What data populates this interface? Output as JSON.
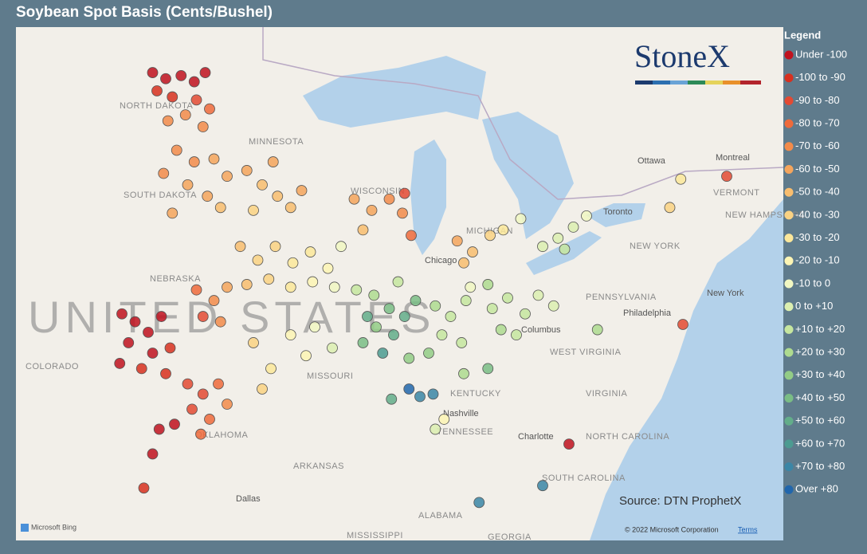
{
  "chart_data": {
    "type": "map-scatter",
    "title": "Soybean Spot Basis (Cents/Bushel)",
    "legend_title": "Legend",
    "legend": [
      {
        "label": "Under -100",
        "color": "#c0121e",
        "max": -100
      },
      {
        "label": "-100 to -90",
        "color": "#d7301f",
        "min": -100,
        "max": -90
      },
      {
        "label": "-90 to -80",
        "color": "#e34a33",
        "min": -90,
        "max": -80
      },
      {
        "label": "-80 to -70",
        "color": "#ee6a3b",
        "min": -80,
        "max": -70
      },
      {
        "label": "-70 to -60",
        "color": "#f28b4a",
        "min": -70,
        "max": -60
      },
      {
        "label": "-60 to -50",
        "color": "#f5a55c",
        "min": -60,
        "max": -50
      },
      {
        "label": "-50 to -40",
        "color": "#f8bd6e",
        "min": -50,
        "max": -40
      },
      {
        "label": "-40 to -30",
        "color": "#fad283",
        "min": -40,
        "max": -30
      },
      {
        "label": "-30 to -20",
        "color": "#fce79a",
        "min": -30,
        "max": -20
      },
      {
        "label": "-20 to -10",
        "color": "#fdf5b4",
        "min": -20,
        "max": -10
      },
      {
        "label": "-10 to 0",
        "color": "#f1f7c2",
        "min": -10,
        "max": 0
      },
      {
        "label": "0 to +10",
        "color": "#dcefb0",
        "min": 0,
        "max": 10
      },
      {
        "label": "+10 to +20",
        "color": "#c6e69f",
        "min": 10,
        "max": 20
      },
      {
        "label": "+20 to +30",
        "color": "#aedb8f",
        "min": 20,
        "max": 30
      },
      {
        "label": "+30 to +40",
        "color": "#93cc86",
        "min": 30,
        "max": 40
      },
      {
        "label": "+40 to +50",
        "color": "#7abd85",
        "min": 40,
        "max": 50
      },
      {
        "label": "+50 to +60",
        "color": "#63ad8a",
        "min": 50,
        "max": 60
      },
      {
        "label": "+60 to +70",
        "color": "#4c9b91",
        "min": 60,
        "max": 70
      },
      {
        "label": "+70 to +80",
        "color": "#3b86a6",
        "min": 70,
        "max": 80
      },
      {
        "label": "Over +80",
        "color": "#2166ac",
        "min": 80
      }
    ],
    "points": [
      {
        "lon": -99.8,
        "lat": 48.8,
        "basis": -105
      },
      {
        "lon": -99.2,
        "lat": 48.6,
        "basis": -102
      },
      {
        "lon": -98.5,
        "lat": 48.7,
        "basis": -108
      },
      {
        "lon": -97.9,
        "lat": 48.5,
        "basis": -104
      },
      {
        "lon": -97.4,
        "lat": 48.8,
        "basis": -101
      },
      {
        "lon": -99.6,
        "lat": 48.2,
        "basis": -98
      },
      {
        "lon": -98.9,
        "lat": 48.0,
        "basis": -95
      },
      {
        "lon": -97.8,
        "lat": 47.9,
        "basis": -85
      },
      {
        "lon": -97.2,
        "lat": 47.6,
        "basis": -75
      },
      {
        "lon": -98.3,
        "lat": 47.4,
        "basis": -70
      },
      {
        "lon": -99.1,
        "lat": 47.2,
        "basis": -68
      },
      {
        "lon": -97.5,
        "lat": 47.0,
        "basis": -62
      },
      {
        "lon": -98.7,
        "lat": 46.2,
        "basis": -65
      },
      {
        "lon": -97.9,
        "lat": 45.8,
        "basis": -62
      },
      {
        "lon": -97.0,
        "lat": 45.9,
        "basis": -58
      },
      {
        "lon": -96.4,
        "lat": 45.3,
        "basis": -55
      },
      {
        "lon": -98.2,
        "lat": 45.0,
        "basis": -60
      },
      {
        "lon": -97.3,
        "lat": 44.6,
        "basis": -52
      },
      {
        "lon": -96.7,
        "lat": 44.2,
        "basis": -48
      },
      {
        "lon": -98.9,
        "lat": 44.0,
        "basis": -57
      },
      {
        "lon": -99.3,
        "lat": 45.4,
        "basis": -66
      },
      {
        "lon": -95.5,
        "lat": 45.5,
        "basis": -52
      },
      {
        "lon": -94.8,
        "lat": 45.0,
        "basis": -48
      },
      {
        "lon": -94.1,
        "lat": 44.6,
        "basis": -45
      },
      {
        "lon": -93.5,
        "lat": 44.2,
        "basis": -42
      },
      {
        "lon": -95.2,
        "lat": 44.1,
        "basis": -38
      },
      {
        "lon": -93.0,
        "lat": 44.8,
        "basis": -55
      },
      {
        "lon": -94.3,
        "lat": 45.8,
        "basis": -60
      },
      {
        "lon": -95.8,
        "lat": 42.8,
        "basis": -45
      },
      {
        "lon": -95.0,
        "lat": 42.3,
        "basis": -40
      },
      {
        "lon": -94.2,
        "lat": 42.8,
        "basis": -35
      },
      {
        "lon": -93.4,
        "lat": 42.2,
        "basis": -30
      },
      {
        "lon": -92.6,
        "lat": 42.6,
        "basis": -25
      },
      {
        "lon": -91.8,
        "lat": 42.0,
        "basis": -18
      },
      {
        "lon": -95.5,
        "lat": 41.4,
        "basis": -42
      },
      {
        "lon": -94.5,
        "lat": 41.6,
        "basis": -32
      },
      {
        "lon": -93.5,
        "lat": 41.3,
        "basis": -22
      },
      {
        "lon": -92.5,
        "lat": 41.5,
        "basis": -12
      },
      {
        "lon": -91.5,
        "lat": 41.3,
        "basis": -5
      },
      {
        "lon": -91.2,
        "lat": 42.8,
        "basis": -8
      },
      {
        "lon": -90.6,
        "lat": 44.5,
        "basis": -60
      },
      {
        "lon": -89.8,
        "lat": 44.1,
        "basis": -55
      },
      {
        "lon": -89.0,
        "lat": 44.5,
        "basis": -62
      },
      {
        "lon": -88.4,
        "lat": 44.0,
        "basis": -68
      },
      {
        "lon": -88.0,
        "lat": 43.2,
        "basis": -75
      },
      {
        "lon": -88.3,
        "lat": 44.7,
        "basis": -85
      },
      {
        "lon": -90.2,
        "lat": 43.4,
        "basis": -45
      },
      {
        "lon": -101.2,
        "lat": 40.3,
        "basis": -110
      },
      {
        "lon": -100.6,
        "lat": 40.0,
        "basis": -105
      },
      {
        "lon": -100.0,
        "lat": 39.6,
        "basis": -108
      },
      {
        "lon": -99.4,
        "lat": 40.2,
        "basis": -102
      },
      {
        "lon": -100.9,
        "lat": 39.2,
        "basis": -103
      },
      {
        "lon": -99.8,
        "lat": 38.8,
        "basis": -112
      },
      {
        "lon": -99.0,
        "lat": 39.0,
        "basis": -96
      },
      {
        "lon": -101.3,
        "lat": 38.4,
        "basis": -106
      },
      {
        "lon": -100.3,
        "lat": 38.2,
        "basis": -100
      },
      {
        "lon": -99.2,
        "lat": 38.0,
        "basis": -92
      },
      {
        "lon": -97.8,
        "lat": 41.2,
        "basis": -75
      },
      {
        "lon": -97.0,
        "lat": 40.8,
        "basis": -68
      },
      {
        "lon": -96.4,
        "lat": 41.3,
        "basis": -55
      },
      {
        "lon": -97.5,
        "lat": 40.2,
        "basis": -85
      },
      {
        "lon": -96.7,
        "lat": 40.0,
        "basis": -62
      },
      {
        "lon": -98.2,
        "lat": 37.6,
        "basis": -88
      },
      {
        "lon": -97.5,
        "lat": 37.2,
        "basis": -82
      },
      {
        "lon": -96.8,
        "lat": 37.6,
        "basis": -72
      },
      {
        "lon": -98.0,
        "lat": 36.6,
        "basis": -90
      },
      {
        "lon": -97.2,
        "lat": 36.2,
        "basis": -78
      },
      {
        "lon": -96.4,
        "lat": 36.8,
        "basis": -65
      },
      {
        "lon": -97.6,
        "lat": 35.6,
        "basis": -80
      },
      {
        "lon": -98.8,
        "lat": 36.0,
        "basis": -104
      },
      {
        "lon": -99.5,
        "lat": 35.8,
        "basis": -108
      },
      {
        "lon": -99.8,
        "lat": 34.8,
        "basis": -101
      },
      {
        "lon": -95.2,
        "lat": 39.2,
        "basis": -40
      },
      {
        "lon": -94.4,
        "lat": 38.2,
        "basis": -28
      },
      {
        "lon": -93.5,
        "lat": 39.5,
        "basis": -15
      },
      {
        "lon": -92.4,
        "lat": 39.8,
        "basis": -8
      },
      {
        "lon": -91.6,
        "lat": 39.0,
        "basis": 5
      },
      {
        "lon": -92.8,
        "lat": 38.7,
        "basis": -12
      },
      {
        "lon": -94.8,
        "lat": 37.4,
        "basis": -35
      },
      {
        "lon": -90.5,
        "lat": 41.2,
        "basis": 12
      },
      {
        "lon": -89.7,
        "lat": 41.0,
        "basis": 25
      },
      {
        "lon": -89.0,
        "lat": 40.5,
        "basis": 45
      },
      {
        "lon": -88.3,
        "lat": 40.2,
        "basis": 52
      },
      {
        "lon": -89.6,
        "lat": 39.8,
        "basis": 38
      },
      {
        "lon": -88.8,
        "lat": 39.5,
        "basis": 58
      },
      {
        "lon": -90.2,
        "lat": 39.2,
        "basis": 45
      },
      {
        "lon": -89.3,
        "lat": 38.8,
        "basis": 62
      },
      {
        "lon": -88.1,
        "lat": 38.6,
        "basis": 30
      },
      {
        "lon": -88.6,
        "lat": 41.5,
        "basis": 15
      },
      {
        "lon": -87.8,
        "lat": 40.8,
        "basis": 48
      },
      {
        "lon": -90.0,
        "lat": 40.2,
        "basis": 55
      },
      {
        "lon": -86.9,
        "lat": 40.6,
        "basis": 20
      },
      {
        "lon": -86.2,
        "lat": 40.2,
        "basis": 15
      },
      {
        "lon": -85.5,
        "lat": 40.8,
        "basis": 12
      },
      {
        "lon": -86.6,
        "lat": 39.5,
        "basis": 18
      },
      {
        "lon": -85.7,
        "lat": 39.2,
        "basis": 10
      },
      {
        "lon": -87.2,
        "lat": 38.8,
        "basis": 35
      },
      {
        "lon": -85.3,
        "lat": 41.3,
        "basis": -5
      },
      {
        "lon": -84.3,
        "lat": 40.5,
        "basis": 12
      },
      {
        "lon": -83.6,
        "lat": 40.9,
        "basis": 18
      },
      {
        "lon": -82.8,
        "lat": 40.3,
        "basis": 10
      },
      {
        "lon": -82.2,
        "lat": 41.0,
        "basis": 5
      },
      {
        "lon": -81.5,
        "lat": 40.6,
        "basis": 2
      },
      {
        "lon": -83.9,
        "lat": 39.7,
        "basis": 20
      },
      {
        "lon": -83.2,
        "lat": 39.5,
        "basis": 15
      },
      {
        "lon": -84.5,
        "lat": 41.4,
        "basis": 25
      },
      {
        "lon": -85.9,
        "lat": 43.0,
        "basis": -55
      },
      {
        "lon": -85.2,
        "lat": 42.6,
        "basis": -48
      },
      {
        "lon": -84.4,
        "lat": 43.2,
        "basis": -40
      },
      {
        "lon": -85.6,
        "lat": 42.2,
        "basis": -45
      },
      {
        "lon": -83.8,
        "lat": 43.4,
        "basis": -30
      },
      {
        "lon": -83.0,
        "lat": 43.8,
        "basis": -10
      },
      {
        "lon": -82.0,
        "lat": 42.8,
        "basis": 5
      },
      {
        "lon": -81.3,
        "lat": 43.1,
        "basis": 8
      },
      {
        "lon": -80.6,
        "lat": 43.5,
        "basis": 3
      },
      {
        "lon": -80.0,
        "lat": 43.9,
        "basis": -2
      },
      {
        "lon": -81.0,
        "lat": 42.7,
        "basis": 12
      },
      {
        "lon": -88.1,
        "lat": 37.4,
        "basis": 85
      },
      {
        "lon": -87.6,
        "lat": 37.1,
        "basis": 78
      },
      {
        "lon": -87.0,
        "lat": 37.2,
        "basis": 75
      },
      {
        "lon": -85.6,
        "lat": 38.0,
        "basis": 25
      },
      {
        "lon": -84.5,
        "lat": 38.2,
        "basis": 42
      },
      {
        "lon": -86.5,
        "lat": 36.2,
        "basis": -12
      },
      {
        "lon": -88.9,
        "lat": 37.0,
        "basis": 55
      },
      {
        "lon": -86.9,
        "lat": 35.8,
        "basis": 5
      },
      {
        "lon": -84.9,
        "lat": 32.8,
        "basis": 75
      },
      {
        "lon": -82.0,
        "lat": 33.5,
        "basis": 72
      },
      {
        "lon": -80.8,
        "lat": 35.2,
        "basis": -105
      },
      {
        "lon": -79.5,
        "lat": 39.7,
        "basis": 20
      },
      {
        "lon": -75.6,
        "lat": 39.9,
        "basis": -85
      },
      {
        "lon": -76.2,
        "lat": 44.2,
        "basis": -35
      },
      {
        "lon": -73.6,
        "lat": 45.3,
        "basis": -90
      },
      {
        "lon": -75.7,
        "lat": 45.2,
        "basis": -30
      },
      {
        "lon": -100.2,
        "lat": 33.4,
        "basis": -100
      }
    ],
    "labels": [
      "NORTH DAKOTA",
      "MINNESOTA",
      "SOUTH DAKOTA",
      "WISCONSIN",
      "MICHIGAN",
      "NEBRASKA",
      "UNITED STATES",
      "COLORADO",
      "MISSOURI",
      "KENTUCKY",
      "TENNESSEE",
      "ARKANSAS",
      "OKLAHOMA",
      "ALABAMA",
      "MISSISSIPPI",
      "GEORGIA",
      "SOUTH CAROLINA",
      "NORTH CAROLINA",
      "VIRGINIA",
      "WEST VIRGINIA",
      "PENNSYLVANIA",
      "NEW YORK",
      "VERMONT",
      "NEW HAMPSHIRE",
      "Chicago",
      "Columbus",
      "Nashville",
      "Dallas",
      "Toronto",
      "Ottawa",
      "Montreal",
      "Philadelphia",
      "New York",
      "Charlotte"
    ],
    "source": "Source: DTN ProphetX",
    "logo": "StoneX",
    "bing": "Microsoft Bing",
    "copyright": "© 2022 Microsoft Corporation",
    "terms": "Terms"
  }
}
